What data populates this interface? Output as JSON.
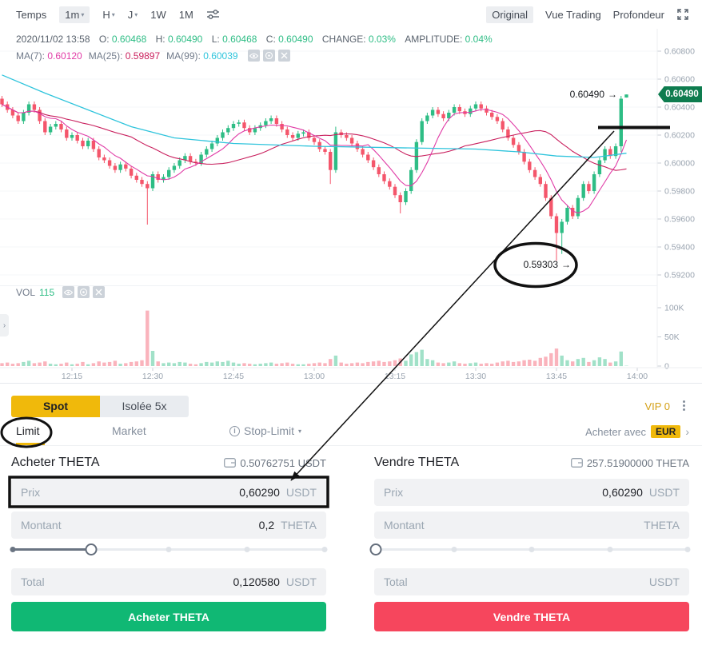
{
  "toolbar": {
    "temps_label": "Temps",
    "intervals": [
      {
        "label": "1m",
        "caret": true,
        "selected": true
      },
      {
        "label": "H",
        "caret": true,
        "selected": false
      },
      {
        "label": "J",
        "caret": true,
        "selected": false
      },
      {
        "label": "1W",
        "caret": false,
        "selected": false
      },
      {
        "label": "1M",
        "caret": false,
        "selected": false
      }
    ],
    "views": [
      {
        "label": "Original",
        "selected": true
      },
      {
        "label": "Vue Trading",
        "selected": false
      },
      {
        "label": "Profondeur",
        "selected": false
      }
    ]
  },
  "legend": {
    "datetime": "2020/11/02 13:58",
    "items": [
      {
        "label": "O:",
        "value": "0.60468"
      },
      {
        "label": "H:",
        "value": "0.60490"
      },
      {
        "label": "L:",
        "value": "0.60468"
      },
      {
        "label": "C:",
        "value": "0.60490"
      },
      {
        "label": "CHANGE:",
        "value": "0.03%"
      },
      {
        "label": "AMPLITUDE:",
        "value": "0.04%"
      }
    ],
    "ma": [
      {
        "label": "MA(7):",
        "value": "0.60120",
        "color": "#e03ba6"
      },
      {
        "label": "MA(25):",
        "value": "0.59897",
        "color": "#c9205e"
      },
      {
        "label": "MA(99):",
        "value": "0.60039",
        "color": "#2fc4dc"
      }
    ],
    "vol_label": "VOL",
    "vol_value": "115"
  },
  "annotations": {
    "high_label": "0.60490",
    "low_label": "0.59303"
  },
  "price_tag": "0.60490",
  "chart_data": {
    "type": "candlestick",
    "y_axis": {
      "ticks": [
        "0.60800",
        "0.60600",
        "0.60400",
        "0.60200",
        "0.60000",
        "0.59800",
        "0.59600",
        "0.59400",
        "0.59200"
      ],
      "top_price": 0.608,
      "step": 0.002
    },
    "vol_axis": {
      "ticks": [
        {
          "label": "100K",
          "v": 100
        },
        {
          "label": "50K",
          "v": 50
        },
        {
          "label": "0",
          "v": 0
        }
      ]
    },
    "x_axis": {
      "ticks": [
        {
          "label": "12:15",
          "m": 15
        },
        {
          "label": "12:30",
          "m": 30
        },
        {
          "label": "12:45",
          "m": 45
        },
        {
          "label": "13:00",
          "m": 60
        },
        {
          "label": "13:15",
          "m": 75
        },
        {
          "label": "13:30",
          "m": 90
        },
        {
          "label": "13:45",
          "m": 105
        },
        {
          "label": "14:00",
          "m": 120
        }
      ]
    },
    "colors": {
      "up": "#2ebd85",
      "down": "#f4566b",
      "ma7": "#e03ba6",
      "ma25": "#c9205e",
      "ma99": "#2fc4dc",
      "tag_bg": "#0e7c4f"
    },
    "candles": [
      [
        2,
        0.6042,
        5
      ],
      [
        3,
        0.6038,
        6
      ],
      [
        4,
        0.6034,
        4
      ],
      [
        5,
        0.603,
        5
      ],
      [
        6,
        0.6036,
        7
      ],
      [
        7,
        0.6042,
        9
      ],
      [
        8,
        0.6038,
        5
      ],
      [
        9,
        0.603,
        6
      ],
      [
        10,
        0.6022,
        8
      ],
      [
        11,
        0.6026,
        4
      ],
      [
        12,
        0.6028,
        3
      ],
      [
        13,
        0.6024,
        4
      ],
      [
        14,
        0.6018,
        6
      ],
      [
        15,
        0.602,
        3
      ],
      [
        16,
        0.6016,
        4
      ],
      [
        17,
        0.6012,
        7
      ],
      [
        18,
        0.6016,
        3
      ],
      [
        19,
        0.601,
        5
      ],
      [
        20,
        0.6004,
        8
      ],
      [
        21,
        0.6002,
        6
      ],
      [
        22,
        0.5998,
        7
      ],
      [
        23,
        0.5995,
        9
      ],
      [
        24,
        0.5999,
        4
      ],
      [
        25,
        0.5996,
        5
      ],
      [
        26,
        0.5991,
        7
      ],
      [
        27,
        0.5988,
        8
      ],
      [
        28,
        0.5985,
        10
      ],
      [
        29,
        0.5982,
        95
      ],
      [
        30,
        0.5992,
        26
      ],
      [
        31,
        0.5988,
        8
      ],
      [
        32,
        0.599,
        5
      ],
      [
        33,
        0.5995,
        6
      ],
      [
        34,
        0.5998,
        5
      ],
      [
        35,
        0.6002,
        7
      ],
      [
        36,
        0.6005,
        6
      ],
      [
        37,
        0.6001,
        4
      ],
      [
        38,
        0.6,
        3
      ],
      [
        39,
        0.6006,
        5
      ],
      [
        40,
        0.601,
        7
      ],
      [
        41,
        0.6014,
        6
      ],
      [
        42,
        0.6018,
        8
      ],
      [
        43,
        0.6022,
        7
      ],
      [
        44,
        0.6025,
        9
      ],
      [
        45,
        0.6028,
        6
      ],
      [
        46,
        0.6029,
        4
      ],
      [
        47,
        0.6025,
        5
      ],
      [
        48,
        0.6022,
        4
      ],
      [
        49,
        0.6025,
        3
      ],
      [
        50,
        0.6027,
        4
      ],
      [
        51,
        0.603,
        5
      ],
      [
        52,
        0.6032,
        6
      ],
      [
        53,
        0.6028,
        4
      ],
      [
        54,
        0.6024,
        5
      ],
      [
        55,
        0.602,
        6
      ],
      [
        56,
        0.6018,
        4
      ],
      [
        57,
        0.6021,
        3
      ],
      [
        58,
        0.6022,
        3
      ],
      [
        59,
        0.6018,
        4
      ],
      [
        60,
        0.6015,
        5
      ],
      [
        61,
        0.601,
        6
      ],
      [
        62,
        0.6008,
        5
      ],
      [
        63,
        0.5995,
        12
      ],
      [
        64,
        0.6022,
        18
      ],
      [
        65,
        0.602,
        6
      ],
      [
        66,
        0.6018,
        4
      ],
      [
        67,
        0.6014,
        5
      ],
      [
        68,
        0.601,
        6
      ],
      [
        69,
        0.6006,
        5
      ],
      [
        70,
        0.6002,
        7
      ],
      [
        71,
        0.5997,
        8
      ],
      [
        72,
        0.5992,
        9
      ],
      [
        73,
        0.5987,
        7
      ],
      [
        74,
        0.5983,
        8
      ],
      [
        75,
        0.5977,
        10
      ],
      [
        76,
        0.5972,
        13
      ],
      [
        77,
        0.598,
        9
      ],
      [
        78,
        0.5995,
        20
      ],
      [
        79,
        0.6015,
        24
      ],
      [
        80,
        0.603,
        28
      ],
      [
        81,
        0.6034,
        12
      ],
      [
        82,
        0.6038,
        10
      ],
      [
        83,
        0.6035,
        6
      ],
      [
        84,
        0.6032,
        5
      ],
      [
        85,
        0.6036,
        6
      ],
      [
        86,
        0.604,
        8
      ],
      [
        87,
        0.6037,
        5
      ],
      [
        88,
        0.6035,
        4
      ],
      [
        89,
        0.6039,
        5
      ],
      [
        90,
        0.6042,
        6
      ],
      [
        91,
        0.6039,
        4
      ],
      [
        92,
        0.6036,
        5
      ],
      [
        93,
        0.6033,
        4
      ],
      [
        94,
        0.603,
        6
      ],
      [
        95,
        0.6024,
        8
      ],
      [
        96,
        0.6018,
        9
      ],
      [
        97,
        0.6013,
        7
      ],
      [
        98,
        0.6008,
        8
      ],
      [
        99,
        0.6001,
        10
      ],
      [
        100,
        0.5995,
        11
      ],
      [
        101,
        0.599,
        9
      ],
      [
        102,
        0.5985,
        14
      ],
      [
        103,
        0.5975,
        16
      ],
      [
        104,
        0.5962,
        22
      ],
      [
        105,
        0.595,
        30
      ],
      [
        106,
        0.5958,
        18
      ],
      [
        107,
        0.5968,
        10
      ],
      [
        108,
        0.5962,
        8
      ],
      [
        109,
        0.5975,
        12
      ],
      [
        110,
        0.5985,
        14
      ],
      [
        111,
        0.598,
        7
      ],
      [
        112,
        0.5992,
        10
      ],
      [
        113,
        0.6002,
        15
      ],
      [
        114,
        0.601,
        12
      ],
      [
        115,
        0.6005,
        6
      ],
      [
        116,
        0.6012,
        8
      ],
      [
        117,
        0.6046,
        25
      ],
      [
        118,
        0.6049,
        0.5
      ]
    ],
    "overrides": {
      "29": {
        "l": 0.5956
      },
      "63": {
        "l": 0.5985
      },
      "64": {
        "o": 0.5995,
        "h": 0.6026
      },
      "76": {
        "l": 0.5964
      },
      "105": {
        "l": 0.59303
      },
      "106": {
        "l": 0.5935
      },
      "117": {
        "o": 0.6012,
        "h": 0.6048,
        "l": 0.6008
      },
      "118": {
        "o": 0.60468,
        "h": 0.6049,
        "l": 0.60468
      }
    },
    "ma99": [
      [
        2,
        0.6063
      ],
      [
        10,
        0.605
      ],
      [
        18,
        0.6038
      ],
      [
        26,
        0.6026
      ],
      [
        34,
        0.6018
      ],
      [
        45,
        0.6014
      ],
      [
        60,
        0.6012
      ],
      [
        75,
        0.6011
      ],
      [
        90,
        0.601
      ],
      [
        98,
        0.6008
      ],
      [
        105,
        0.6005
      ],
      [
        112,
        0.6004
      ],
      [
        118,
        0.6007
      ]
    ]
  },
  "panel": {
    "tabs": [
      {
        "label": "Spot",
        "active": true
      },
      {
        "label": "Isolée 5x",
        "active": false
      }
    ],
    "vip": "VIP 0",
    "order_types": [
      {
        "label": "Limit",
        "active": true
      },
      {
        "label": "Market",
        "active": false
      },
      {
        "label": "Stop-Limit",
        "active": false
      }
    ],
    "buy_with": "Acheter avec",
    "buy_with_currency": "EUR",
    "buy": {
      "title": "Acheter THETA",
      "balance": "0.50762751 USDT",
      "price_label": "Prix",
      "price_value": "0,60290",
      "price_unit": "USDT",
      "amount_label": "Montant",
      "amount_value": "0,2",
      "amount_unit": "THETA",
      "total_label": "Total",
      "total_value": "0,120580",
      "total_unit": "USDT",
      "button": "Acheter THETA",
      "slider_pct": 25
    },
    "sell": {
      "title": "Vendre THETA",
      "balance": "257.51900000 THETA",
      "price_label": "Prix",
      "price_value": "0,60290",
      "price_unit": "USDT",
      "amount_label": "Montant",
      "amount_value": "",
      "amount_unit": "THETA",
      "total_label": "Total",
      "total_value": "",
      "total_unit": "USDT",
      "button": "Vendre THETA",
      "slider_pct": 0
    }
  }
}
